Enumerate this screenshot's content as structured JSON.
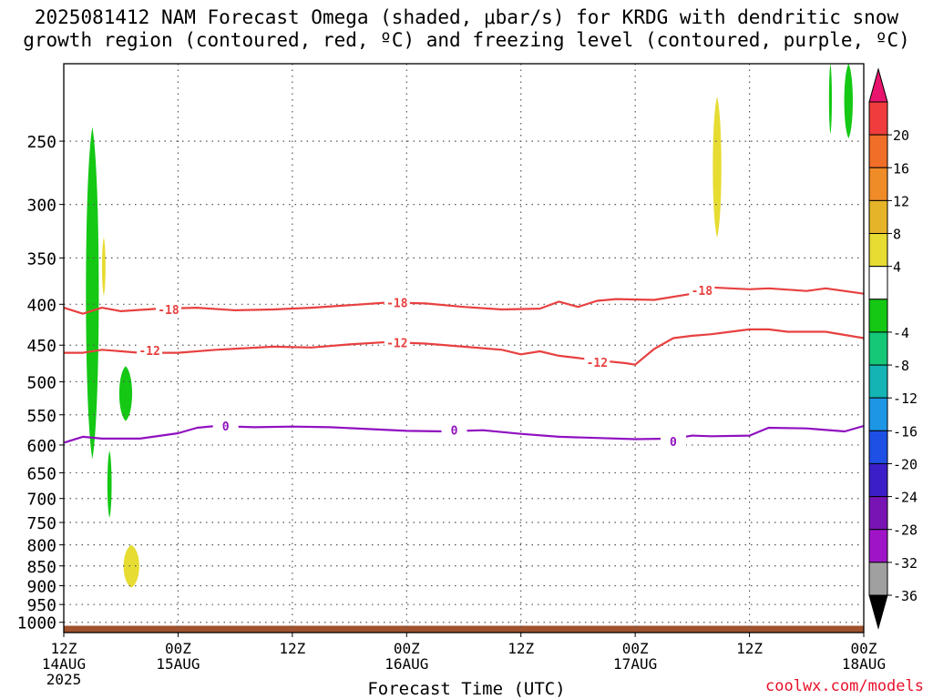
{
  "title": {
    "line1": "2025081412 NAM Forecast Omega (shaded, μbar/s) for KRDG with dendritic snow",
    "line2": "growth region (contoured, red, ºC) and freezing level (contoured, purple, ºC)"
  },
  "credit": "coolwx.com/models",
  "chart_data": {
    "type": "time-height cross section",
    "xlabel": "Forecast Time (UTC)",
    "ylabel": "",
    "x_ticks": [
      {
        "t": 0,
        "lines": [
          "12Z",
          "14AUG",
          "2025"
        ]
      },
      {
        "t": 12,
        "lines": [
          "00Z",
          "15AUG"
        ]
      },
      {
        "t": 24,
        "lines": [
          "12Z"
        ]
      },
      {
        "t": 36,
        "lines": [
          "00Z",
          "16AUG"
        ]
      },
      {
        "t": 48,
        "lines": [
          "12Z"
        ]
      },
      {
        "t": 60,
        "lines": [
          "00Z",
          "17AUG"
        ]
      },
      {
        "t": 72,
        "lines": [
          "12Z"
        ]
      },
      {
        "t": 84,
        "lines": [
          "00Z",
          "18AUG"
        ]
      }
    ],
    "xlim_hours": [
      0,
      84
    ],
    "y_ticks_hpa": [
      250,
      300,
      350,
      400,
      450,
      500,
      550,
      600,
      650,
      700,
      750,
      800,
      850,
      900,
      950,
      1000
    ],
    "ylim_hpa": [
      200,
      1030
    ],
    "y_scale": "log-pressure",
    "grid": true,
    "colorbar": {
      "units": "μbar/s",
      "labels": [
        "20",
        "16",
        "12",
        "8",
        "4",
        "-4",
        "-8",
        "-12",
        "-16",
        "-20",
        "-24",
        "-28",
        "-32",
        "-36"
      ],
      "segments": [
        {
          "color": "#e8146e",
          "kind": "triangle-top"
        },
        {
          "color": "#f03c3c",
          "label": "20"
        },
        {
          "color": "#f06e28",
          "label": "16"
        },
        {
          "color": "#f08c28",
          "label": "12"
        },
        {
          "color": "#e6b428",
          "label": "8"
        },
        {
          "color": "#e6dc32",
          "label": "4"
        },
        {
          "color": "#ffffff",
          "label": "-4"
        },
        {
          "color": "#14c814",
          "label": "-8"
        },
        {
          "color": "#14c878",
          "label": "-12"
        },
        {
          "color": "#14b4b4",
          "label": "-16"
        },
        {
          "color": "#1e96e6",
          "label": "-20"
        },
        {
          "color": "#1e50e6",
          "label": "-24"
        },
        {
          "color": "#3c1ec8",
          "label": "-28"
        },
        {
          "color": "#7814b4",
          "label": "-32"
        },
        {
          "color": "#a014c8",
          "label": "-36"
        },
        {
          "color": "#a0a0a0"
        },
        {
          "color": "#000000",
          "kind": "triangle-bottom"
        }
      ]
    },
    "series": [
      {
        "name": "-18",
        "color": "#e84040",
        "points": [
          [
            0,
            404
          ],
          [
            2,
            411
          ],
          [
            4,
            404
          ],
          [
            6,
            408
          ],
          [
            10,
            405
          ],
          [
            14,
            404
          ],
          [
            18,
            407
          ],
          [
            22,
            406
          ],
          [
            26,
            404
          ],
          [
            30,
            401
          ],
          [
            34,
            398
          ],
          [
            38,
            399
          ],
          [
            42,
            403
          ],
          [
            46,
            406
          ],
          [
            50,
            405
          ],
          [
            52,
            397
          ],
          [
            54,
            403
          ],
          [
            56,
            396
          ],
          [
            58,
            394
          ],
          [
            62,
            395
          ],
          [
            66,
            388
          ],
          [
            68,
            381
          ],
          [
            72,
            383
          ],
          [
            74,
            382
          ],
          [
            78,
            385
          ],
          [
            80,
            382
          ],
          [
            84,
            388
          ]
        ],
        "labels": [
          [
            11,
            406
          ],
          [
            35,
            398
          ],
          [
            67,
            384
          ]
        ]
      },
      {
        "name": "-12",
        "color": "#e84040",
        "points": [
          [
            0,
            460
          ],
          [
            2,
            460
          ],
          [
            4,
            456
          ],
          [
            8,
            460
          ],
          [
            12,
            460
          ],
          [
            16,
            456
          ],
          [
            22,
            452
          ],
          [
            26,
            453
          ],
          [
            30,
            449
          ],
          [
            34,
            446
          ],
          [
            38,
            448
          ],
          [
            42,
            452
          ],
          [
            46,
            456
          ],
          [
            48,
            462
          ],
          [
            50,
            458
          ],
          [
            52,
            464
          ],
          [
            56,
            470
          ],
          [
            59,
            474
          ],
          [
            60,
            476
          ],
          [
            62,
            455
          ],
          [
            64,
            441
          ],
          [
            66,
            438
          ],
          [
            68,
            436
          ],
          [
            70,
            433
          ],
          [
            72,
            430
          ],
          [
            74,
            430
          ],
          [
            76,
            433
          ],
          [
            80,
            433
          ],
          [
            84,
            441
          ]
        ],
        "labels": [
          [
            9,
            457
          ],
          [
            35,
            447
          ],
          [
            56,
            473
          ]
        ]
      },
      {
        "name": "0",
        "color": "#9010c0",
        "points": [
          [
            0,
            596
          ],
          [
            2,
            586
          ],
          [
            4,
            589
          ],
          [
            8,
            589
          ],
          [
            12,
            580
          ],
          [
            14,
            571
          ],
          [
            16,
            568
          ],
          [
            20,
            570
          ],
          [
            24,
            569
          ],
          [
            28,
            570
          ],
          [
            32,
            573
          ],
          [
            36,
            576
          ],
          [
            40,
            577
          ],
          [
            44,
            575
          ],
          [
            48,
            581
          ],
          [
            52,
            586
          ],
          [
            56,
            588
          ],
          [
            60,
            590
          ],
          [
            64,
            589
          ],
          [
            66,
            584
          ],
          [
            68,
            585
          ],
          [
            72,
            584
          ],
          [
            74,
            571
          ],
          [
            78,
            572
          ],
          [
            82,
            577
          ],
          [
            84,
            568
          ]
        ],
        "labels": [
          [
            17,
            568
          ],
          [
            41,
            575
          ],
          [
            64,
            594
          ]
        ]
      }
    ],
    "omega_regions": [
      {
        "color": "#14c814",
        "t": 3.0,
        "p_top": 240,
        "p_bot": 625,
        "half_width_hours": 0.9
      },
      {
        "color": "#e6dc32",
        "t": 4.2,
        "p_top": 330,
        "p_bot": 390,
        "half_width_hours": 0.25
      },
      {
        "color": "#14c814",
        "t": 6.5,
        "p_top": 478,
        "p_bot": 560,
        "half_width_hours": 0.9
      },
      {
        "color": "#14c814",
        "t": 4.8,
        "p_top": 610,
        "p_bot": 740,
        "half_width_hours": 0.3
      },
      {
        "color": "#e6dc32",
        "t": 7.1,
        "p_top": 800,
        "p_bot": 905,
        "half_width_hours": 1.1
      },
      {
        "color": "#e6dc32",
        "t": 68.6,
        "p_top": 220,
        "p_bot": 330,
        "half_width_hours": 0.6
      },
      {
        "color": "#14c814",
        "t": 82.4,
        "p_top": 200,
        "p_bot": 248,
        "half_width_hours": 0.6
      },
      {
        "color": "#14c814",
        "t": 80.5,
        "p_top": 200,
        "p_bot": 245,
        "half_width_hours": 0.2
      }
    ],
    "terrain": {
      "color": "#a0522d",
      "p_surface": 1010
    }
  }
}
